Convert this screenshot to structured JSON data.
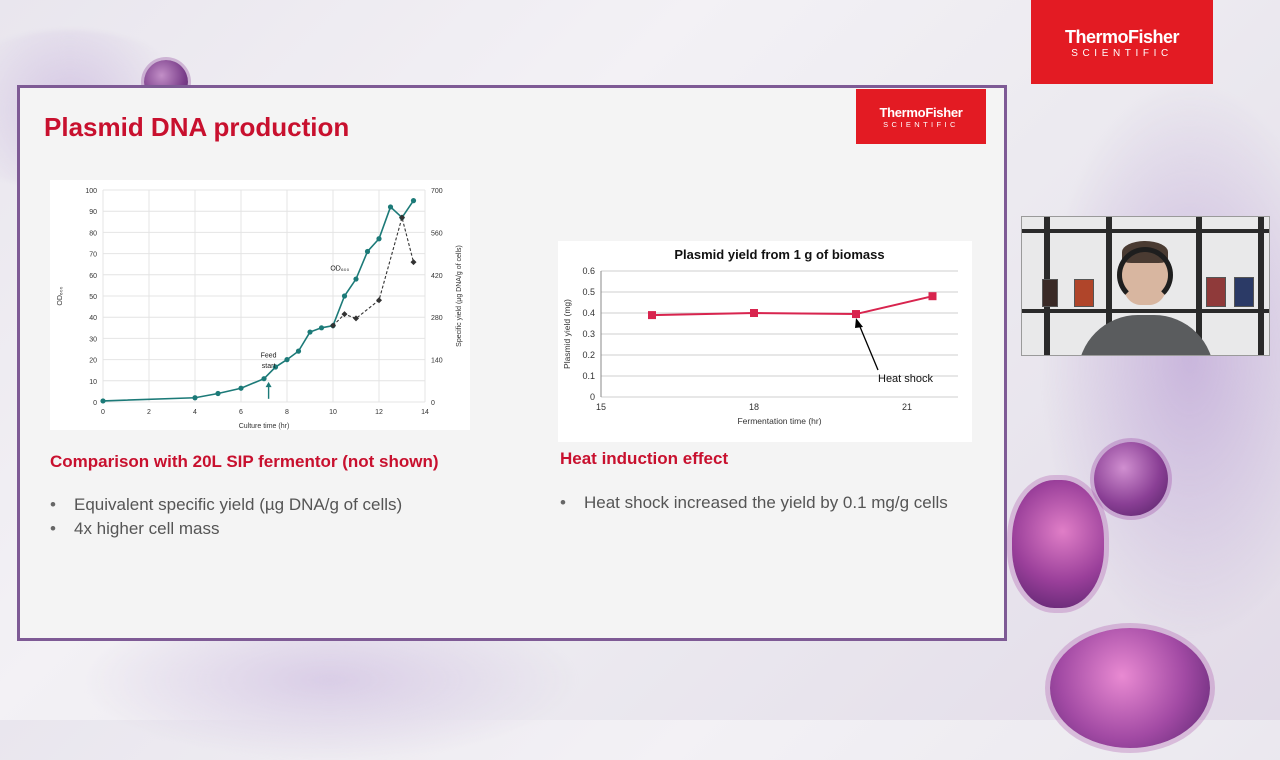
{
  "brand": {
    "name": "ThermoFisher",
    "sub": "SCIENTIFIC",
    "color": "#e31b23"
  },
  "slide": {
    "title": "Plasmid DNA production",
    "title_color": "#c8102e",
    "border_color": "#7e5a95",
    "left_heading": "Comparison with 20L SIP fermentor (not shown)",
    "left_bullets": [
      "Equivalent specific yield (µg DNA/g of cells)",
      "4x higher cell mass"
    ],
    "right_heading": "Heat induction effect",
    "right_bullets": [
      "Heat shock increased the yield by 0.1 mg/g cells"
    ]
  },
  "chart_data": [
    {
      "type": "line",
      "title": "",
      "xlabel": "Culture time (hr)",
      "ylabel": "OD₆₀₀",
      "y2label": "Specific yield (µg DNA/g of cells)",
      "xlim": [
        0,
        14
      ],
      "ylim": [
        0,
        100
      ],
      "y2lim": [
        0,
        700
      ],
      "x_ticks": [
        0,
        2,
        4,
        6,
        8,
        10,
        12,
        14
      ],
      "y_ticks": [
        0,
        10,
        20,
        30,
        40,
        50,
        60,
        70,
        80,
        90,
        100
      ],
      "y2_ticks": [
        0,
        140,
        280,
        420,
        560,
        700
      ],
      "grid": true,
      "series": [
        {
          "name": "OD₆₀₀",
          "axis": "left",
          "color": "#1c7a78",
          "style": "solid",
          "x": [
            0,
            4,
            5,
            6,
            7,
            7.5,
            8,
            8.5,
            9,
            9.5,
            10,
            10.5,
            11,
            11.5,
            12,
            12.5,
            13,
            13.5
          ],
          "y": [
            0.5,
            2,
            4,
            6.5,
            11,
            16.5,
            20,
            24,
            33,
            35,
            36,
            50,
            58,
            71,
            77,
            92,
            87,
            95
          ]
        },
        {
          "name": "",
          "axis": "right",
          "color": "#333333",
          "style": "dashed",
          "x": [
            10,
            10.5,
            11,
            12,
            13,
            13.5
          ],
          "y": [
            252,
            290,
            276,
            336,
            609,
            462
          ]
        }
      ],
      "annotations": [
        {
          "text": "OD₆₀₀",
          "x": 10.3,
          "y": 62
        },
        {
          "text": "Feed",
          "x": 7.2,
          "y": 21
        },
        {
          "text": "start",
          "x": 7.2,
          "y": 16
        }
      ]
    },
    {
      "type": "line",
      "title": "Plasmid yield from 1 g of biomass",
      "xlabel": "Fermentation time (hr)",
      "ylabel": "Plasmid yield (mg)",
      "xlim": [
        15,
        22
      ],
      "ylim": [
        0,
        0.6
      ],
      "x_ticks": [
        15,
        18,
        21
      ],
      "y_ticks": [
        0,
        0.1,
        0.2,
        0.3,
        0.4,
        0.5,
        0.6
      ],
      "grid": true,
      "series": [
        {
          "name": "",
          "color": "#d8244e",
          "x": [
            16,
            18,
            20,
            21.5
          ],
          "y": [
            0.39,
            0.4,
            0.395,
            0.48
          ]
        }
      ],
      "annotations": [
        {
          "text": "Heat shock",
          "x": 20,
          "y": 0.395
        }
      ]
    }
  ]
}
